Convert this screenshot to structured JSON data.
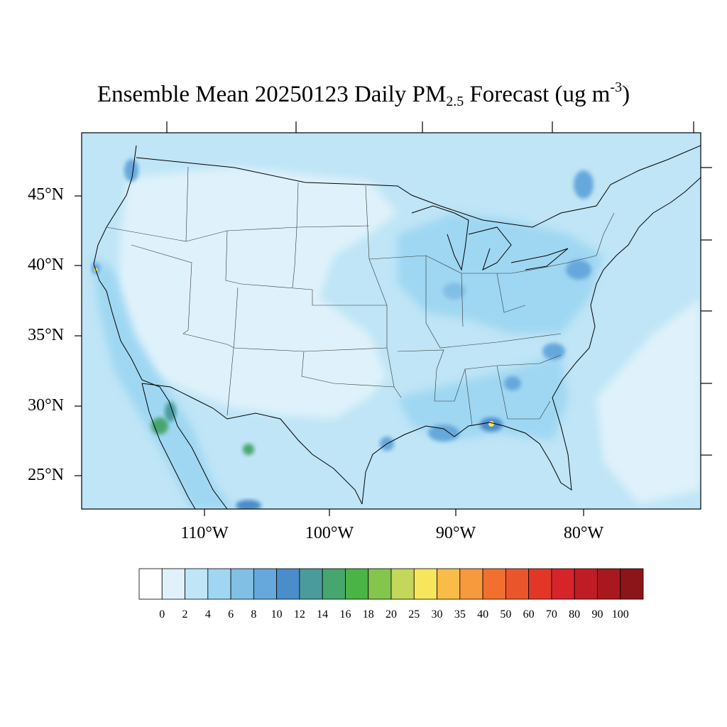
{
  "title": {
    "prefix": "Ensemble Mean 20250123 Daily PM",
    "subscript": "2.5",
    "middle": " Forecast (ug m",
    "superscript": "-3",
    "suffix": ")"
  },
  "map": {
    "region": "Contiguous United States",
    "lat_labels": [
      "45°N",
      "40°N",
      "35°N",
      "30°N",
      "25°N"
    ],
    "lon_labels": [
      "110°W",
      "100°W",
      "90°W",
      "80°W"
    ]
  },
  "colorbar": {
    "labels": [
      "0",
      "2",
      "4",
      "6",
      "8",
      "10",
      "12",
      "14",
      "16",
      "18",
      "20",
      "25",
      "30",
      "35",
      "40",
      "50",
      "60",
      "70",
      "80",
      "90",
      "100"
    ],
    "colors": [
      "#ffffff",
      "#dff2fb",
      "#bfe5f6",
      "#9fd7f2",
      "#82bfe4",
      "#66a8db",
      "#4b8ccb",
      "#4a9b9c",
      "#47a66e",
      "#4bb446",
      "#84c54d",
      "#c3d75a",
      "#f7e65c",
      "#f9bc48",
      "#f69a3d",
      "#f26f2f",
      "#eb552b",
      "#e23727",
      "#d7232a",
      "#c01c25",
      "#a9181f",
      "#8c1519"
    ]
  }
}
